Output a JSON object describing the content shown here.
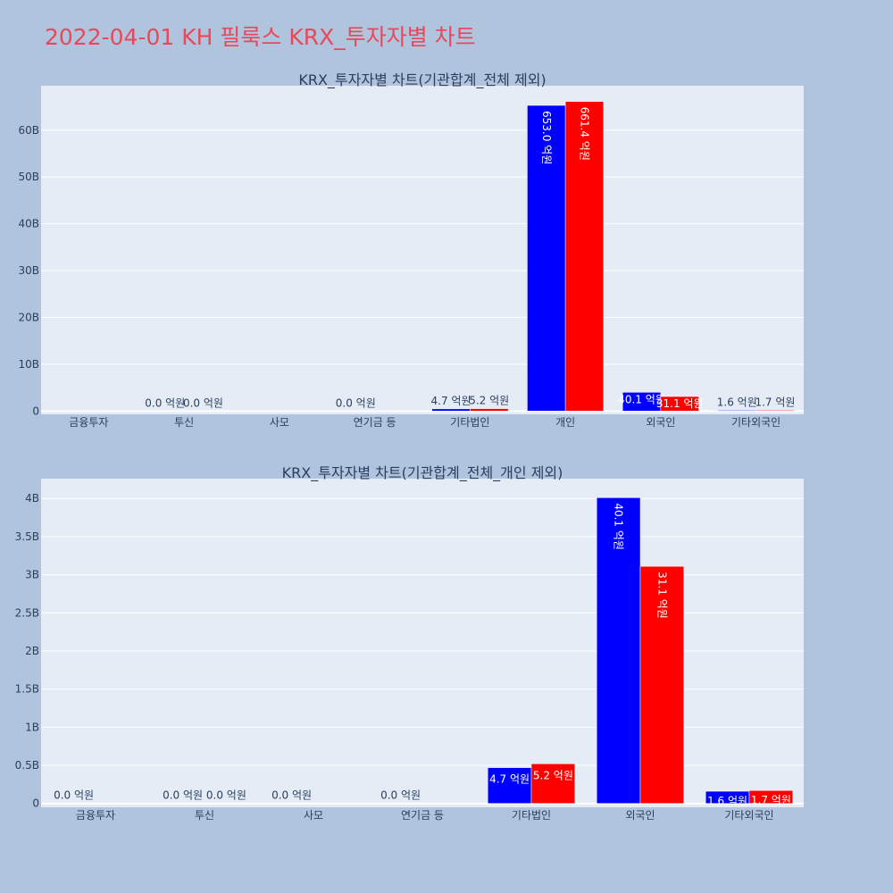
{
  "page": {
    "title": "2022-04-01 KH 필룩스 KRX_투자자별 차트",
    "background": "#b0c4de",
    "title_color": "#e8485a"
  },
  "chart_data": [
    {
      "type": "bar",
      "title": "KRX_투자자별 차트(기관합계_전체 제외)",
      "categories": [
        "금융투자",
        "투신",
        "사모",
        "연기금 등",
        "기타법인",
        "개인",
        "외국인",
        "기타외국인"
      ],
      "series": [
        {
          "color": "#0000ff",
          "values": [
            0,
            0.0,
            0,
            0.0,
            0.47,
            65.3,
            4.01,
            0.16
          ]
        },
        {
          "color": "#ff0000",
          "values": [
            0,
            0.0,
            0,
            0,
            0.52,
            66.14,
            3.11,
            0.17
          ]
        }
      ],
      "data_labels": [
        [
          "",
          "0.0 억원",
          "",
          "0.0 억원",
          "4.7 억원",
          "653.0 억원",
          "40.1 억원",
          "1.6 억원"
        ],
        [
          "",
          "0.0 억원",
          "",
          "",
          "5.2 억원",
          "661.4 억원",
          "31.1 억원",
          "1.7 억원"
        ]
      ],
      "y_unit": "billions",
      "ylim": [
        -0.7,
        69.5
      ],
      "yticks": [
        0,
        10,
        20,
        30,
        40,
        50,
        60
      ],
      "ytick_labels": [
        "0",
        "10B",
        "20B",
        "30B",
        "40B",
        "50B",
        "60B"
      ],
      "grid": true,
      "plot_background": "#e5ecf6"
    },
    {
      "type": "bar",
      "title": "KRX_투자자별 차트(기관합계_전체_개인 제외)",
      "categories": [
        "금융투자",
        "투신",
        "사모",
        "연기금 등",
        "기타법인",
        "외국인",
        "기타외국인"
      ],
      "series": [
        {
          "color": "#0000ff",
          "values": [
            0.0,
            0.0,
            0.0,
            0.0,
            0.47,
            4.01,
            0.16
          ]
        },
        {
          "color": "#ff0000",
          "values": [
            0,
            0.0,
            0,
            0,
            0.52,
            3.11,
            0.17
          ]
        }
      ],
      "data_labels": [
        [
          "0.0 억원",
          "0.0 억원",
          "0.0 억원",
          "0.0 억원",
          "4.7 억원",
          "40.1 억원",
          "1.6 억원"
        ],
        [
          "",
          "0.0 억원",
          "",
          "",
          "5.2 억원",
          "31.1 억원",
          "1.7 억원"
        ]
      ],
      "y_unit": "billions",
      "ylim": [
        -0.05,
        4.26
      ],
      "yticks": [
        0,
        0.5,
        1,
        1.5,
        2,
        2.5,
        3,
        3.5,
        4
      ],
      "ytick_labels": [
        "0",
        "0.5B",
        "1B",
        "1.5B",
        "2B",
        "2.5B",
        "3B",
        "3.5B",
        "4B"
      ],
      "grid": true,
      "plot_background": "#e5ecf6"
    }
  ]
}
